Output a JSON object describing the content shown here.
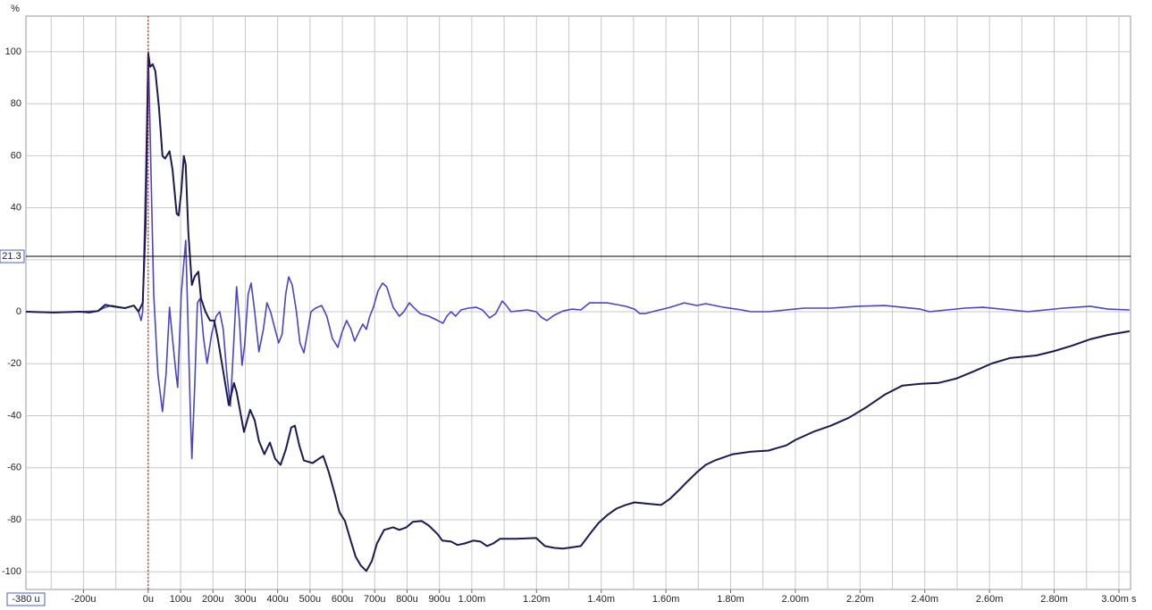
{
  "chart_data": {
    "type": "line",
    "y_label": "%",
    "xlim": [
      -378,
      3036
    ],
    "ylim": [
      -106.8,
      113.7
    ],
    "grid": true,
    "yticks": [
      -100,
      -80,
      -60,
      -40,
      -20,
      0,
      20,
      40,
      60,
      80,
      100
    ],
    "xticks": [
      {
        "value": -200,
        "label": "-200u"
      },
      {
        "value": 0,
        "label": "0u"
      },
      {
        "value": 100,
        "label": "100u"
      },
      {
        "value": 200,
        "label": "200u"
      },
      {
        "value": 300,
        "label": "300u"
      },
      {
        "value": 400,
        "label": "400u"
      },
      {
        "value": 500,
        "label": "500u"
      },
      {
        "value": 600,
        "label": "600u"
      },
      {
        "value": 700,
        "label": "700u"
      },
      {
        "value": 800,
        "label": "800u"
      },
      {
        "value": 900,
        "label": "900u"
      },
      {
        "value": 1000,
        "label": "1.00m"
      },
      {
        "value": 1200,
        "label": "1.20m"
      },
      {
        "value": 1400,
        "label": "1.40m"
      },
      {
        "value": 1600,
        "label": "1.60m"
      },
      {
        "value": 1800,
        "label": "1.80m"
      },
      {
        "value": 2000,
        "label": "2.00m"
      },
      {
        "value": 2200,
        "label": "2.20m"
      },
      {
        "value": 2400,
        "label": "2.40m"
      },
      {
        "value": 2600,
        "label": "2.60m"
      },
      {
        "value": 2800,
        "label": "2.80m"
      },
      {
        "value": 3000,
        "label": "3.00m s"
      }
    ],
    "xminorticks": [
      -300,
      -100,
      1100,
      1300,
      1500,
      1700,
      1900,
      2100,
      2300,
      2500,
      2700,
      2900
    ],
    "cursor_y": 21.3,
    "cursor_x": {
      "value": -380,
      "label": "-380 u"
    },
    "marker_x": 0,
    "series": [
      {
        "color": "#4a44c4",
        "x": [
          -378,
          -293,
          -210,
          -155,
          -133,
          -113,
          -72,
          -44,
          -30,
          -22,
          -17,
          -8,
          0,
          6,
          17,
          30,
          44,
          55,
          66,
          75,
          86,
          91,
          102,
          116,
          122,
          130,
          135,
          144,
          152,
          160,
          171,
          182,
          196,
          210,
          221,
          232,
          243,
          254,
          265,
          273,
          282,
          290,
          298,
          309,
          318,
          329,
          342,
          356,
          367,
          378,
          392,
          403,
          414,
          425,
          434,
          445,
          458,
          469,
          481,
          489,
          503,
          517,
          536,
          552,
          569,
          586,
          599,
          613,
          627,
          638,
          652,
          663,
          674,
          685,
          696,
          710,
          724,
          737,
          757,
          776,
          790,
          807,
          820,
          840,
          867,
          895,
          911,
          923,
          936,
          950,
          967,
          989,
          1014,
          1033,
          1055,
          1074,
          1094,
          1105,
          1121,
          1171,
          1199,
          1215,
          1232,
          1254,
          1282,
          1309,
          1337,
          1364,
          1420,
          1475,
          1503,
          1519,
          1536,
          1558,
          1613,
          1657,
          1696,
          1723,
          1779,
          1834,
          1862,
          1917,
          1972,
          2027,
          2110,
          2193,
          2276,
          2331,
          2386,
          2414,
          2469,
          2524,
          2580,
          2663,
          2718,
          2773,
          2828,
          2911,
          2966,
          3033
        ],
        "values": [
          0,
          -0.3,
          0,
          0.3,
          1.7,
          2.4,
          1.4,
          2.4,
          0,
          -3.4,
          0,
          51.4,
          99.9,
          68.5,
          6.8,
          -24.0,
          -38.4,
          -24.0,
          1.7,
          -10.3,
          -24.0,
          -29.1,
          6.8,
          27.4,
          0,
          -37.7,
          -56.5,
          -27.4,
          3.4,
          5.1,
          -10.3,
          -19.9,
          -8.6,
          -1.7,
          0,
          -6.8,
          -24.0,
          -36.3,
          -10.3,
          9.6,
          -3.4,
          -20.6,
          -13.0,
          6.8,
          11.0,
          0,
          -15.4,
          -6.8,
          3.4,
          0,
          -6.8,
          -12.0,
          -8.6,
          6.8,
          13.4,
          10.3,
          0,
          -12.0,
          -15.8,
          -10.3,
          0,
          1.4,
          2.4,
          -1.7,
          -10.3,
          -13.7,
          -7.9,
          -3.4,
          -6.8,
          -11.3,
          -7.5,
          -4.8,
          -6.8,
          -1.7,
          1.7,
          7.9,
          11.0,
          9.6,
          1.7,
          -1.7,
          0,
          3.4,
          1.7,
          -0.7,
          -1.7,
          -3.4,
          -4.4,
          -1.7,
          0,
          -1.7,
          0.7,
          1.4,
          1.7,
          0.7,
          -2.4,
          -0.7,
          4.1,
          2.7,
          0,
          0.7,
          0,
          -2.1,
          -3.4,
          -1.4,
          0.3,
          1.0,
          0.7,
          3.4,
          3.4,
          2.1,
          1.0,
          -0.7,
          -0.7,
          0,
          1.7,
          3.4,
          2.4,
          3.1,
          1.7,
          0.7,
          0,
          0,
          0.7,
          1.4,
          1.4,
          2.1,
          2.4,
          1.7,
          1.0,
          0,
          0.7,
          1.4,
          1.7,
          0.7,
          0,
          0.7,
          1.4,
          2.1,
          1.0,
          0.7
        ]
      },
      {
        "color": "#1c1a4e",
        "x": [
          -378,
          -293,
          -210,
          -182,
          -155,
          -133,
          -113,
          -72,
          -44,
          -30,
          -17,
          -8,
          0,
          6,
          14,
          22,
          33,
          44,
          52,
          66,
          75,
          88,
          94,
          102,
          110,
          116,
          124,
          135,
          144,
          155,
          163,
          177,
          191,
          204,
          215,
          249,
          265,
          273,
          296,
          315,
          329,
          342,
          359,
          376,
          392,
          409,
          425,
          442,
          453,
          467,
          481,
          508,
          528,
          541,
          558,
          577,
          591,
          608,
          624,
          641,
          657,
          674,
          691,
          707,
          729,
          757,
          776,
          798,
          818,
          845,
          867,
          895,
          909,
          936,
          956,
          978,
          1005,
          1027,
          1047,
          1066,
          1088,
          1138,
          1199,
          1226,
          1254,
          1282,
          1337,
          1364,
          1392,
          1420,
          1447,
          1475,
          1503,
          1558,
          1585,
          1613,
          1641,
          1668,
          1696,
          1723,
          1751,
          1806,
          1862,
          1917,
          1944,
          1972,
          2000,
          2055,
          2110,
          2165,
          2221,
          2276,
          2331,
          2386,
          2442,
          2497,
          2552,
          2607,
          2663,
          2745,
          2801,
          2856,
          2911,
          2966,
          3033
        ],
        "values": [
          0,
          -0.3,
          0,
          -0.3,
          0.3,
          2.7,
          2.1,
          1.4,
          2.4,
          0,
          3.4,
          34.3,
          99.3,
          94.2,
          95.2,
          92.5,
          78.8,
          59.9,
          58.9,
          61.7,
          54.8,
          37.7,
          37.0,
          46.2,
          59.9,
          56.5,
          30.8,
          10.3,
          13.7,
          15.4,
          5.1,
          0,
          -3.4,
          -3.4,
          -10.3,
          -35.9,
          -27.4,
          -30.8,
          -46.2,
          -37.7,
          -41.8,
          -49.7,
          -54.8,
          -50.3,
          -56.5,
          -58.9,
          -53.1,
          -44.5,
          -43.8,
          -51.4,
          -57.2,
          -58.2,
          -56.5,
          -55.5,
          -61.7,
          -70.2,
          -77.1,
          -80.5,
          -87.3,
          -94.2,
          -97.6,
          -99.7,
          -95.9,
          -89.1,
          -83.9,
          -82.9,
          -83.9,
          -82.9,
          -80.8,
          -80.5,
          -82.2,
          -85.6,
          -88.0,
          -88.4,
          -89.7,
          -89.1,
          -88.0,
          -88.4,
          -90.1,
          -89.1,
          -87.3,
          -87.3,
          -87.0,
          -90.1,
          -90.8,
          -91.1,
          -90.1,
          -85.6,
          -81.2,
          -78.1,
          -75.7,
          -74.3,
          -73.3,
          -74.0,
          -74.3,
          -71.9,
          -68.5,
          -65.1,
          -61.7,
          -58.9,
          -57.2,
          -54.8,
          -53.8,
          -53.4,
          -52.4,
          -51.4,
          -49.3,
          -46.2,
          -43.8,
          -40.8,
          -36.6,
          -31.9,
          -28.4,
          -27.7,
          -27.4,
          -25.7,
          -22.9,
          -19.9,
          -17.8,
          -16.8,
          -15.1,
          -13.0,
          -10.6,
          -8.9,
          -7.5
        ]
      }
    ]
  }
}
